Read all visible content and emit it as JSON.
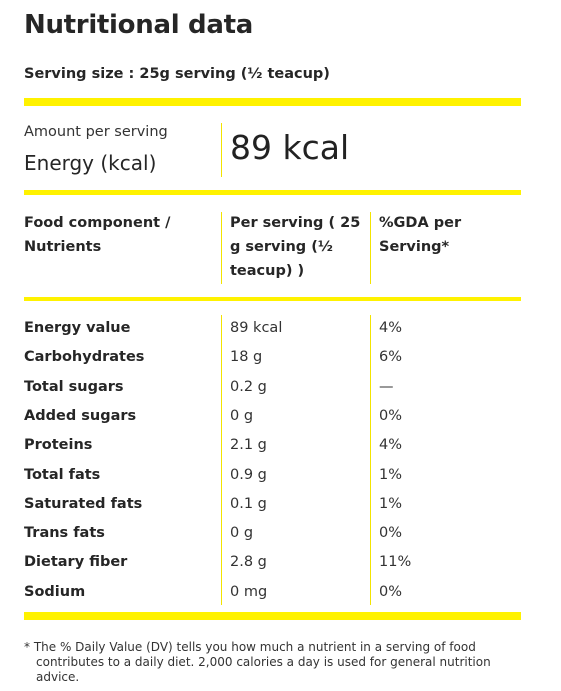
{
  "title": "Nutritional data",
  "serving_size": "Serving size : 25g serving (½ teacup)",
  "energy_block": {
    "amount_label": "Amount per serving",
    "energy_label": "Energy (kcal)",
    "energy_value": "89 kcal"
  },
  "table": {
    "headers": {
      "component": "Food component / Nutrients",
      "per_serving": "Per serving ( 25 g serving (½ teacup) )",
      "gda": "%GDA per Serving*"
    },
    "rows": [
      {
        "name": "Energy value",
        "amount": "89 kcal",
        "gda": "4%"
      },
      {
        "name": "Carbohydrates",
        "amount": "18 g",
        "gda": "6%"
      },
      {
        "name": "Total sugars",
        "amount": "0.2 g",
        "gda": "—"
      },
      {
        "name": "Added sugars",
        "amount": "0 g",
        "gda": "0%"
      },
      {
        "name": "Proteins",
        "amount": "2.1 g",
        "gda": "4%"
      },
      {
        "name": "Total fats",
        "amount": "0.9 g",
        "gda": "1%"
      },
      {
        "name": "Saturated fats",
        "amount": "0.1 g",
        "gda": "1%"
      },
      {
        "name": "Trans fats",
        "amount": "0 g",
        "gda": "0%"
      },
      {
        "name": "Dietary fiber",
        "amount": "2.8 g",
        "gda": "11%"
      },
      {
        "name": "Sodium",
        "amount": "0 mg",
        "gda": "0%"
      }
    ]
  },
  "footnote": "* The % Daily Value (DV) tells you how much a nutrient in a serving of food contributes to a daily diet. 2,000 calories a day is used for general nutrition advice.",
  "colors": {
    "accent": "#fff200",
    "text": "#262626"
  }
}
